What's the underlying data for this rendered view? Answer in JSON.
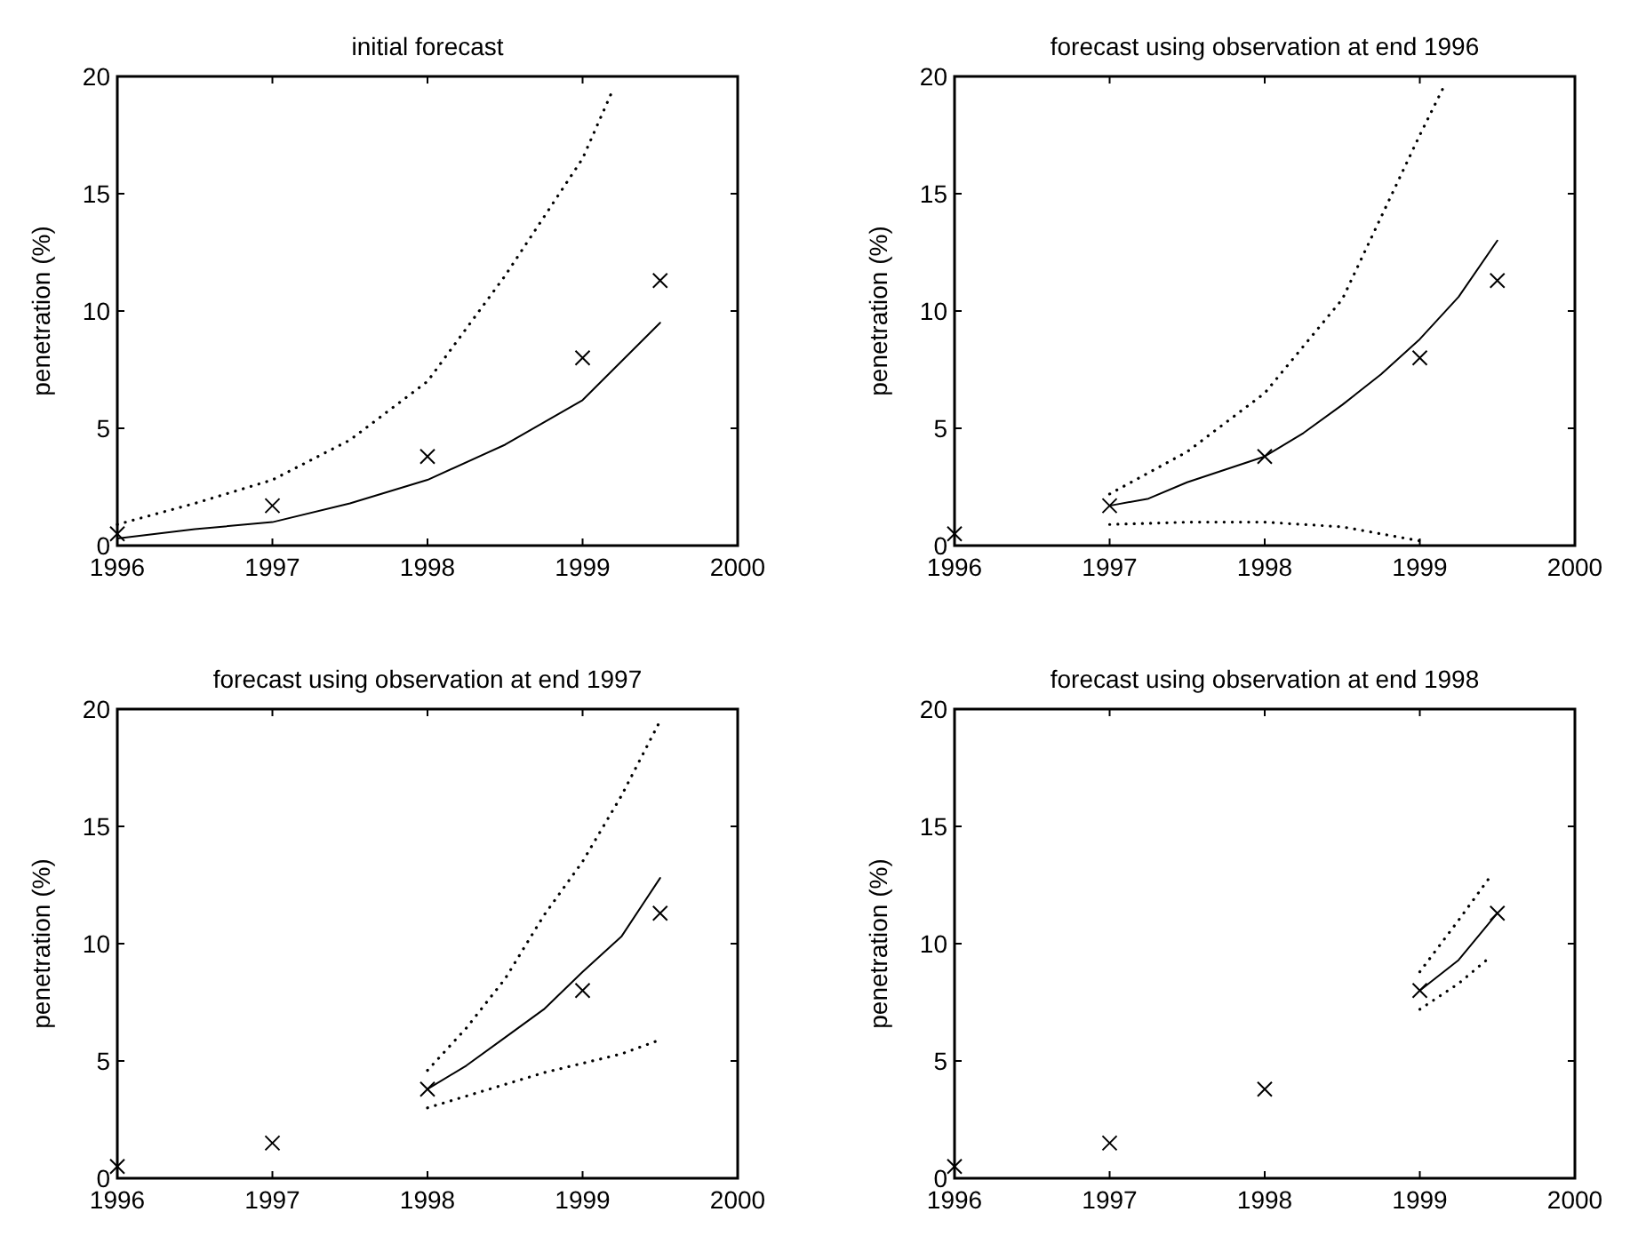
{
  "chart_data": [
    {
      "type": "line",
      "title": "initial forecast",
      "ylabel": "penetration (%)",
      "xlim": [
        1996,
        2000
      ],
      "xticks": [
        1996,
        1997,
        1998,
        1999,
        2000
      ],
      "ylim": [
        0,
        20
      ],
      "yticks": [
        0,
        5,
        10,
        15,
        20
      ],
      "series": [
        {
          "type": "scatter",
          "marker": "cross",
          "color": "#000000",
          "x": [
            1996,
            1997,
            1998,
            1999,
            1999.5
          ],
          "values": [
            0.5,
            1.7,
            3.8,
            8.0,
            11.3
          ]
        },
        {
          "color": "#000000",
          "line_style": "solid",
          "x": [
            1996,
            1996.5,
            1997,
            1997.5,
            1998,
            1998.5,
            1999,
            1999.5
          ],
          "values": [
            0.3,
            0.7,
            1.0,
            1.8,
            2.8,
            4.3,
            6.2,
            9.5
          ]
        },
        {
          "color": "#000000",
          "line_style": "dotted",
          "x": [
            1996,
            1996.5,
            1997,
            1997.5,
            1998,
            1998.5,
            1999,
            1999.2
          ],
          "values": [
            0.9,
            1.8,
            2.8,
            4.5,
            7.0,
            11.5,
            16.5,
            19.5
          ]
        }
      ]
    },
    {
      "type": "line",
      "title": "forecast using observation at end 1996",
      "ylabel": "penetration (%)",
      "xlim": [
        1996,
        2000
      ],
      "xticks": [
        1996,
        1997,
        1998,
        1999,
        2000
      ],
      "ylim": [
        0,
        20
      ],
      "yticks": [
        0,
        5,
        10,
        15,
        20
      ],
      "series": [
        {
          "type": "scatter",
          "marker": "cross",
          "color": "#000000",
          "x": [
            1996,
            1997,
            1998,
            1999,
            1999.5
          ],
          "values": [
            0.5,
            1.7,
            3.8,
            8.0,
            11.3
          ]
        },
        {
          "color": "#000000",
          "line_style": "solid",
          "x": [
            1997,
            1997.25,
            1997.5,
            1998,
            1998.25,
            1998.5,
            1998.75,
            1999,
            1999.25,
            1999.5
          ],
          "values": [
            1.7,
            2.0,
            2.7,
            3.8,
            4.8,
            6.0,
            7.3,
            8.8,
            10.6,
            13.0
          ]
        },
        {
          "color": "#000000",
          "line_style": "dotted",
          "x": [
            1997,
            1997.5,
            1998,
            1998.5,
            1998.75,
            1999,
            1999.15
          ],
          "values": [
            2.2,
            4.0,
            6.5,
            10.5,
            14.0,
            17.5,
            19.5
          ]
        },
        {
          "color": "#000000",
          "line_style": "dotted",
          "x": [
            1997,
            1997.5,
            1998,
            1998.5,
            1999
          ],
          "values": [
            0.9,
            1.0,
            1.0,
            0.8,
            0.2
          ]
        }
      ]
    },
    {
      "type": "line",
      "title": "forecast using observation at end 1997",
      "ylabel": "penetration (%)",
      "xlim": [
        1996,
        2000
      ],
      "xticks": [
        1996,
        1997,
        1998,
        1999,
        2000
      ],
      "ylim": [
        0,
        20
      ],
      "yticks": [
        0,
        5,
        10,
        15,
        20
      ],
      "series": [
        {
          "type": "scatter",
          "marker": "cross",
          "color": "#000000",
          "x": [
            1996,
            1997,
            1998,
            1999,
            1999.5
          ],
          "values": [
            0.5,
            1.5,
            3.8,
            8.0,
            11.3
          ]
        },
        {
          "color": "#000000",
          "line_style": "solid",
          "x": [
            1998,
            1998.25,
            1998.5,
            1998.75,
            1999,
            1999.25,
            1999.5
          ],
          "values": [
            3.8,
            4.8,
            6.0,
            7.2,
            8.8,
            10.3,
            12.8
          ]
        },
        {
          "color": "#000000",
          "line_style": "dotted",
          "x": [
            1998,
            1998.25,
            1998.5,
            1998.75,
            1999,
            1999.25,
            1999.5
          ],
          "values": [
            4.6,
            6.4,
            8.5,
            11.2,
            13.5,
            16.3,
            19.5
          ]
        },
        {
          "color": "#000000",
          "line_style": "dotted",
          "x": [
            1998,
            1998.25,
            1998.5,
            1998.75,
            1999,
            1999.25,
            1999.5
          ],
          "values": [
            3.0,
            3.5,
            4.0,
            4.5,
            4.9,
            5.3,
            5.9
          ]
        }
      ]
    },
    {
      "type": "line",
      "title": "forecast using observation at end 1998",
      "ylabel": "penetration (%)",
      "xlim": [
        1996,
        2000
      ],
      "xticks": [
        1996,
        1997,
        1998,
        1999,
        2000
      ],
      "ylim": [
        0,
        20
      ],
      "yticks": [
        0,
        5,
        10,
        15,
        20
      ],
      "series": [
        {
          "type": "scatter",
          "marker": "cross",
          "color": "#000000",
          "x": [
            1996,
            1997,
            1998,
            1999,
            1999.5
          ],
          "values": [
            0.5,
            1.5,
            3.8,
            8.0,
            11.3
          ]
        },
        {
          "color": "#000000",
          "line_style": "solid",
          "x": [
            1999,
            1999.25,
            1999.5
          ],
          "values": [
            8.0,
            9.3,
            11.3
          ]
        },
        {
          "color": "#000000",
          "line_style": "dotted",
          "x": [
            1999,
            1999.25,
            1999.47
          ],
          "values": [
            8.8,
            11.0,
            13.0
          ]
        },
        {
          "color": "#000000",
          "line_style": "dotted",
          "x": [
            1999,
            1999.25,
            1999.43
          ],
          "values": [
            7.2,
            8.3,
            9.3
          ]
        }
      ]
    }
  ]
}
